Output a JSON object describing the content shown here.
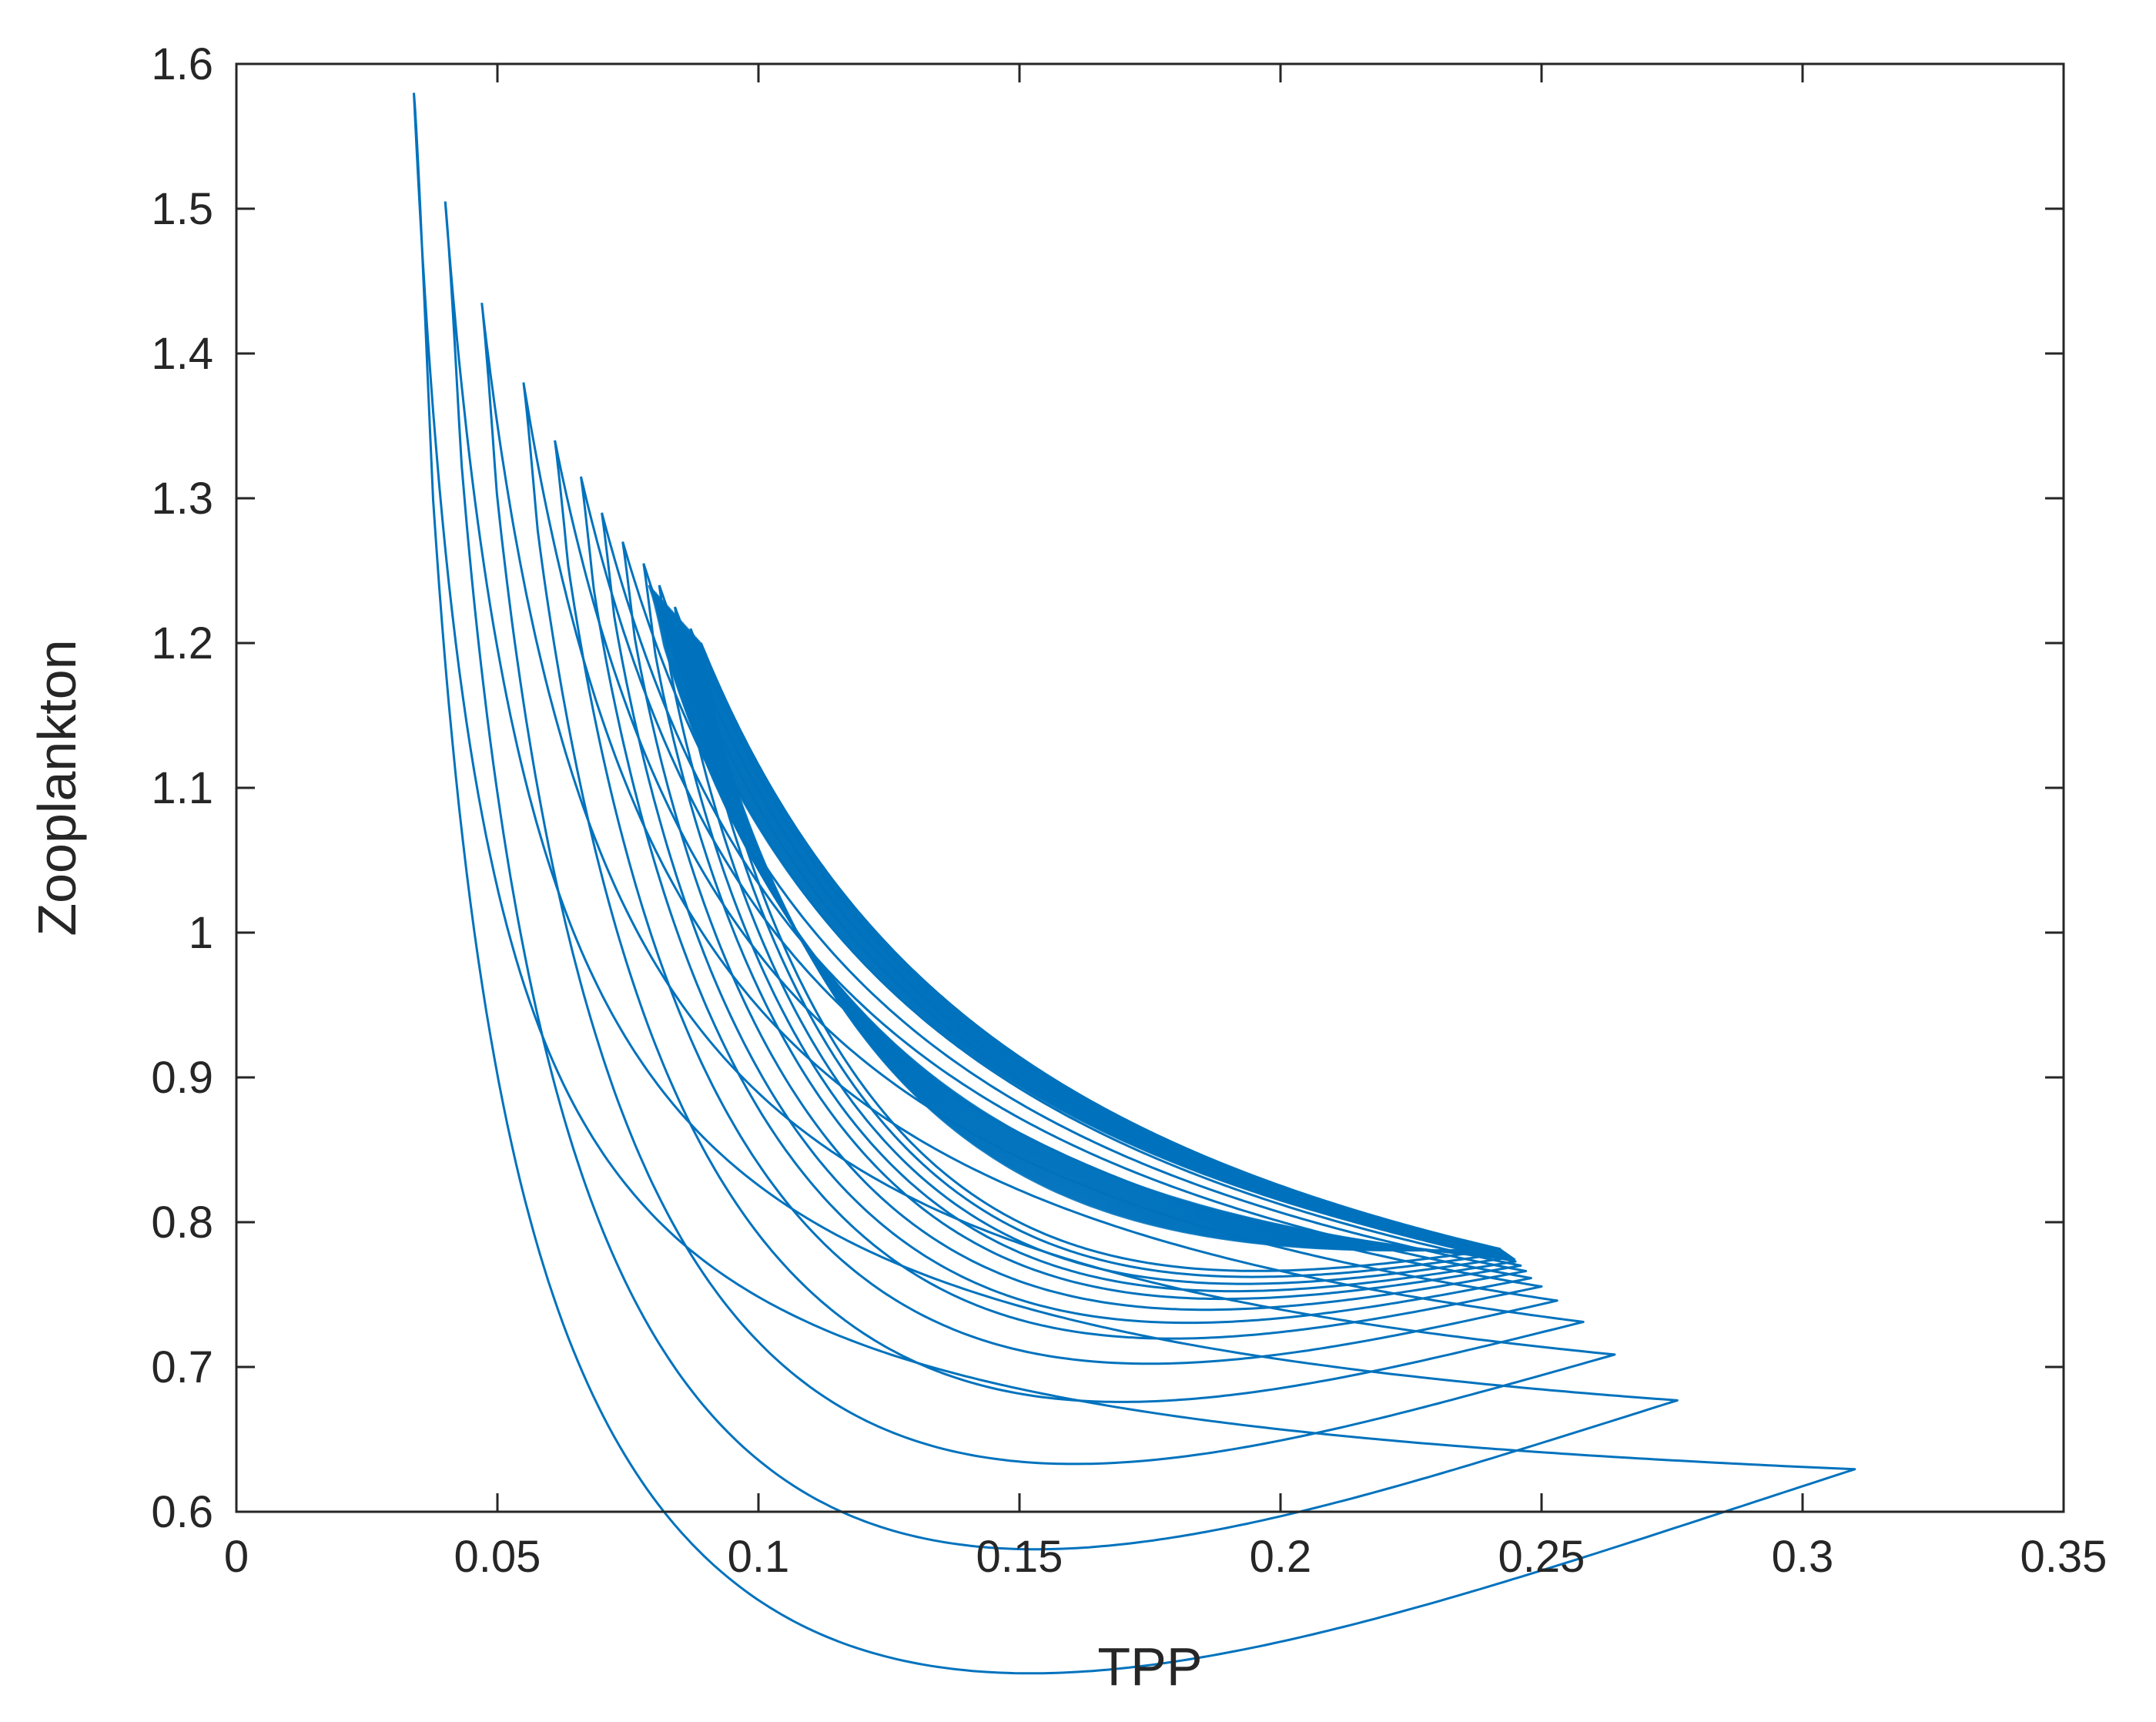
{
  "chart_data": {
    "type": "line",
    "title": "",
    "xlabel": "TPP",
    "ylabel": "Zooplankton",
    "xlim": [
      0,
      0.35
    ],
    "ylim": [
      0.6,
      1.6
    ],
    "xticks": [
      0,
      0.05,
      0.1,
      0.15,
      0.2,
      0.25,
      0.3,
      0.35
    ],
    "xtick_labels": [
      "0",
      "0.05",
      "0.1",
      "0.15",
      "0.2",
      "0.25",
      "0.3",
      "0.35"
    ],
    "yticks": [
      0.6,
      0.7,
      0.8,
      0.9,
      1.0,
      1.1,
      1.2,
      1.3,
      1.4,
      1.5,
      1.6
    ],
    "ytick_labels": [
      "0.6",
      "0.7",
      "0.8",
      "0.9",
      "1",
      "1.1",
      "1.2",
      "1.3",
      "1.4",
      "1.5",
      "1.6"
    ],
    "grid": false,
    "legend": "none",
    "series_color": "#0072BD",
    "axis_color": "#262626",
    "description_of_trajectory": "phase-plane spiral converging to an attractor",
    "loop_extremes": [
      {
        "x_min": 0.034,
        "y_max": 1.58,
        "x_max": 0.31,
        "y_min": 0.63
      },
      {
        "x_min": 0.04,
        "y_max": 1.505,
        "x_max": 0.276,
        "y_min": 0.678
      },
      {
        "x_min": 0.047,
        "y_max": 1.435,
        "x_max": 0.264,
        "y_min": 0.71
      },
      {
        "x_min": 0.055,
        "y_max": 1.38,
        "x_max": 0.258,
        "y_min": 0.733
      },
      {
        "x_min": 0.061,
        "y_max": 1.34,
        "x_max": 0.253,
        "y_min": 0.748
      },
      {
        "x_min": 0.066,
        "y_max": 1.315,
        "x_max": 0.25,
        "y_min": 0.758
      },
      {
        "x_min": 0.07,
        "y_max": 1.29,
        "x_max": 0.248,
        "y_min": 0.764
      },
      {
        "x_min": 0.074,
        "y_max": 1.27,
        "x_max": 0.247,
        "y_min": 0.769
      },
      {
        "x_min": 0.078,
        "y_max": 1.255,
        "x_max": 0.246,
        "y_min": 0.773
      },
      {
        "x_min": 0.081,
        "y_max": 1.24,
        "x_max": 0.245,
        "y_min": 0.776
      },
      {
        "x_min": 0.084,
        "y_max": 1.225,
        "x_max": 0.244,
        "y_min": 0.779
      },
      {
        "x_min": 0.087,
        "y_max": 1.21,
        "x_max": 0.243,
        "y_min": 0.782
      },
      {
        "x_min": 0.089,
        "y_max": 1.2,
        "x_max": 0.242,
        "y_min": 0.785
      }
    ]
  }
}
